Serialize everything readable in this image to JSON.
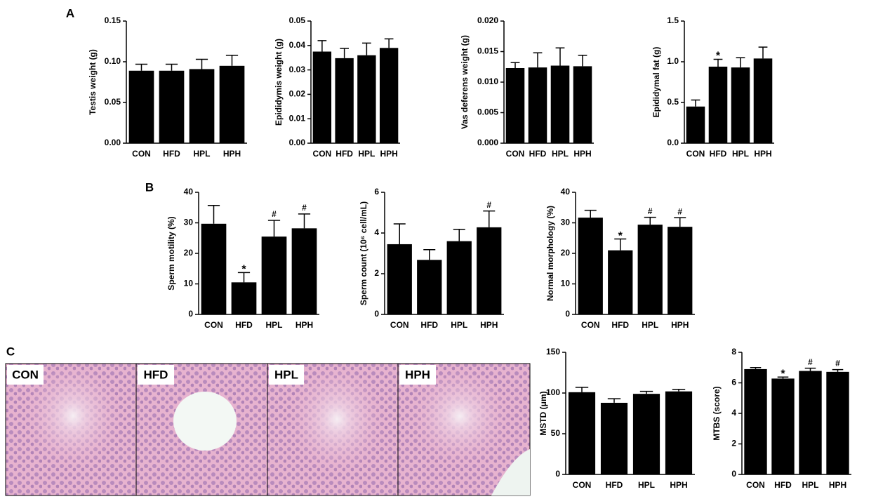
{
  "panel_labels": [
    "A",
    "B",
    "C"
  ],
  "images": [
    {
      "label": "CON"
    },
    {
      "label": "HFD"
    },
    {
      "label": "HPL"
    },
    {
      "label": "HPH"
    }
  ],
  "chart_data": [
    {
      "type": "bar",
      "y_label": "Testis weight (g)",
      "categories": [
        "CON",
        "HFD",
        "HPL",
        "HPH"
      ],
      "values": [
        0.089,
        0.089,
        0.091,
        0.095
      ],
      "errors": [
        0.008,
        0.008,
        0.012,
        0.013
      ],
      "annotations": [
        null,
        null,
        null,
        null
      ],
      "color": "#000000",
      "ylim": [
        0,
        0.15
      ],
      "yticks": [
        {
          "value": 0,
          "label": "0.00"
        },
        {
          "value": 0.05,
          "label": "0.05"
        },
        {
          "value": 0.1,
          "label": "0.10"
        },
        {
          "value": 0.15,
          "label": "0.15"
        }
      ]
    },
    {
      "type": "bar",
      "y_label": "Epididymis weight (g)",
      "categories": [
        "CON",
        "HFD",
        "HPL",
        "HPH"
      ],
      "values": [
        0.0375,
        0.0348,
        0.036,
        0.039
      ],
      "errors": [
        0.0045,
        0.004,
        0.005,
        0.0037
      ],
      "annotations": [
        null,
        null,
        null,
        null
      ],
      "color": "#000000",
      "ylim": [
        0,
        0.05
      ],
      "yticks": [
        {
          "value": 0,
          "label": "0.00"
        },
        0.01,
        0.02,
        0.03,
        0.04,
        0.05
      ]
    },
    {
      "type": "bar",
      "y_label": "Vas deferens weight (g)",
      "categories": [
        "CON",
        "HFD",
        "HPL",
        "HPH"
      ],
      "values": [
        0.0123,
        0.0124,
        0.0127,
        0.0126
      ],
      "errors": [
        0.0009,
        0.0024,
        0.0029,
        0.0018
      ],
      "annotations": [
        null,
        null,
        null,
        null
      ],
      "color": "#000000",
      "ylim": [
        0,
        0.02
      ],
      "yticks": [
        {
          "value": 0,
          "label": "0.000"
        },
        0.005,
        {
          "value": 0.01,
          "label": "0.010"
        },
        0.015,
        {
          "value": 0.02,
          "label": "0.020"
        }
      ]
    },
    {
      "type": "bar",
      "y_label": "Epididymal fat (g)",
      "categories": [
        "CON",
        "HFD",
        "HPL",
        "HPH"
      ],
      "values": [
        0.45,
        0.94,
        0.93,
        1.04
      ],
      "errors": [
        0.08,
        0.09,
        0.12,
        0.14
      ],
      "annotations": [
        null,
        "*",
        null,
        null
      ],
      "color": "#000000",
      "ylim": [
        0,
        1.5
      ],
      "yticks": [
        {
          "value": 0,
          "label": "0.0"
        },
        0.5,
        {
          "value": 1,
          "label": "1.0"
        },
        1.5
      ]
    },
    {
      "type": "bar",
      "y_label": "Sperm motility (%)",
      "categories": [
        "CON",
        "HFD",
        "HPL",
        "HPH"
      ],
      "values": [
        29.7,
        10.5,
        25.5,
        28.2
      ],
      "errors": [
        6,
        3.2,
        5.3,
        4.7
      ],
      "annotations": [
        null,
        "*",
        "#",
        "#"
      ],
      "color": "#000000",
      "ylim": [
        0,
        40
      ],
      "yticks": [
        0,
        10,
        20,
        30,
        40
      ]
    },
    {
      "type": "bar",
      "y_label": "Sperm count (10⁶ cell/mL)",
      "categories": [
        "CON",
        "HFD",
        "HPL",
        "HPH"
      ],
      "values": [
        3.45,
        2.68,
        3.6,
        4.28
      ],
      "errors": [
        1.0,
        0.5,
        0.58,
        0.8
      ],
      "annotations": [
        null,
        null,
        null,
        "#"
      ],
      "color": "#000000",
      "ylim": [
        0,
        6
      ],
      "yticks": [
        0,
        2,
        4,
        6
      ]
    },
    {
      "type": "bar",
      "y_label": "Normal morphology (%)",
      "categories": [
        "CON",
        "HFD",
        "HPL",
        "HPH"
      ],
      "values": [
        31.7,
        21.0,
        29.4,
        28.7
      ],
      "errors": [
        2.4,
        3.7,
        2.4,
        3.0
      ],
      "annotations": [
        null,
        "*",
        "#",
        "#"
      ],
      "color": "#000000",
      "ylim": [
        0,
        40
      ],
      "yticks": [
        0,
        10,
        20,
        30,
        40
      ]
    },
    {
      "type": "bar",
      "y_label": "MSTD (μm)",
      "categories": [
        "CON",
        "HFD",
        "HPL",
        "HPH"
      ],
      "values": [
        101,
        88,
        99,
        102
      ],
      "errors": [
        6,
        5,
        3,
        2.5
      ],
      "annotations": [
        null,
        null,
        null,
        null
      ],
      "color": "#000000",
      "ylim": [
        0,
        150
      ],
      "yticks": [
        0,
        50,
        100,
        150
      ]
    },
    {
      "type": "bar",
      "y_label": "MTBS (score)",
      "categories": [
        "CON",
        "HFD",
        "HPL",
        "HPH"
      ],
      "values": [
        6.9,
        6.28,
        6.78,
        6.72
      ],
      "errors": [
        0.1,
        0.1,
        0.18,
        0.15
      ],
      "annotations": [
        null,
        "*",
        "#",
        "#"
      ],
      "color": "#000000",
      "ylim": [
        0,
        8
      ],
      "yticks": [
        0,
        2,
        4,
        6,
        8
      ]
    }
  ]
}
